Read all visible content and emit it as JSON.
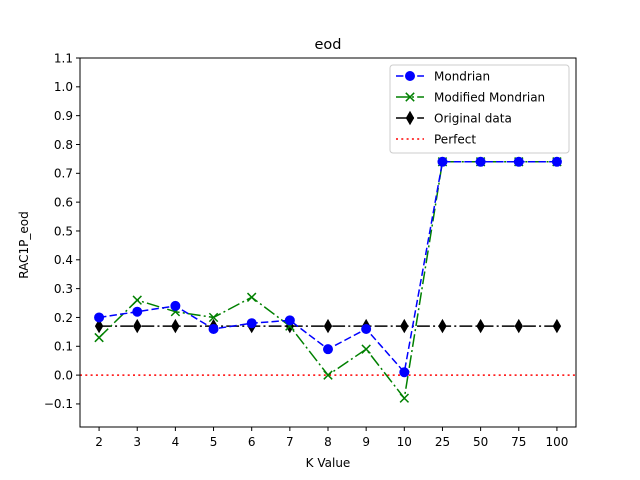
{
  "chart_data": {
    "type": "line",
    "title": "eod",
    "xlabel": "K Value",
    "ylabel": "RAC1P_eod",
    "categories": [
      "2",
      "3",
      "4",
      "5",
      "6",
      "7",
      "8",
      "9",
      "10",
      "25",
      "50",
      "75",
      "100"
    ],
    "ylim": [
      -0.18,
      1.1
    ],
    "yticks": [
      "−0.1",
      "0.0",
      "0.1",
      "0.2",
      "0.3",
      "0.4",
      "0.5",
      "0.6",
      "0.7",
      "0.8",
      "0.9",
      "1.0",
      "1.1"
    ],
    "ytick_values": [
      -0.1,
      0.0,
      0.1,
      0.2,
      0.3,
      0.4,
      0.5,
      0.6,
      0.7,
      0.8,
      0.9,
      1.0,
      1.1
    ],
    "grid": false,
    "legend_position": "top-right",
    "series": [
      {
        "name": "Mondrian",
        "color": "#0000ff",
        "dash": "dashed",
        "marker": "circle",
        "values": [
          0.2,
          0.22,
          0.24,
          0.16,
          0.18,
          0.19,
          0.09,
          0.16,
          0.01,
          0.74,
          0.74,
          0.74,
          0.74
        ]
      },
      {
        "name": "Modified Mondrian",
        "color": "#008000",
        "dash": "dashdot",
        "marker": "x",
        "values": [
          0.13,
          0.26,
          0.22,
          0.2,
          0.27,
          0.17,
          0.0,
          0.09,
          -0.08,
          0.74,
          0.74,
          0.74,
          0.74
        ]
      },
      {
        "name": "Original data",
        "color": "#000000",
        "dash": "dashdot",
        "marker": "thin-diamond",
        "values": [
          0.17,
          0.17,
          0.17,
          0.17,
          0.17,
          0.17,
          0.17,
          0.17,
          0.17,
          0.17,
          0.17,
          0.17,
          0.17
        ]
      }
    ],
    "reference_lines": [
      {
        "name": "Perfect",
        "y": 0.0,
        "color": "#ff0000",
        "dash": "dotted"
      }
    ]
  }
}
